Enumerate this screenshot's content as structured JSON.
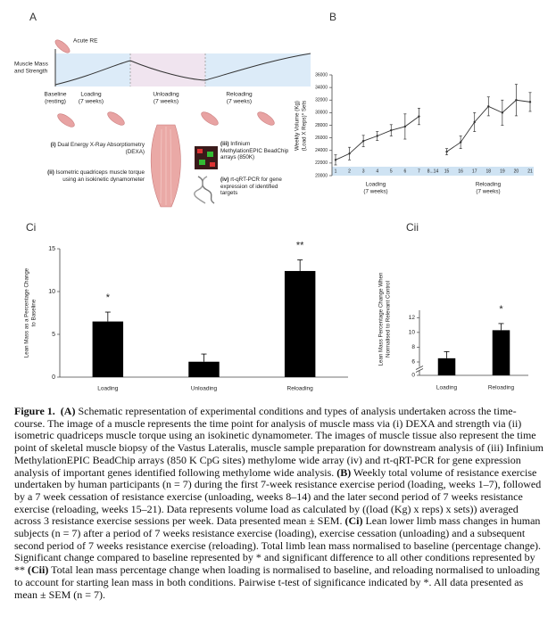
{
  "panel_a": {
    "label": "A",
    "acute": "Acute RE",
    "ylabel": [
      "Muscle Mass",
      "and Strength"
    ],
    "phases": [
      {
        "name": "Baseline",
        "sub": "(resting)"
      },
      {
        "name": "Loading",
        "sub": "(7 weeks)"
      },
      {
        "name": "Unloading",
        "sub": "(7 weeks)"
      },
      {
        "name": "Reloading",
        "sub": "(7 weeks)"
      }
    ],
    "analyses": [
      {
        "marker": "(i)",
        "text": "Dual Energy X-Ray Absorptiometry (DEXA)"
      },
      {
        "marker": "(ii)",
        "text": "Isometric quadriceps muscle torque using an isokinetic dynamometer"
      },
      {
        "marker": "(iii)",
        "text": "Infinium MethylationEPIC BeadChip arrays (850K)"
      },
      {
        "marker": "(iv)",
        "text": "rt-qRT-PCR for gene expression of identified targets"
      }
    ]
  },
  "chart_data": [
    {
      "type": "line",
      "panel": "B",
      "ylabel": [
        "Weekly Volume (Kg)",
        "(Load X Reps)* Sets"
      ],
      "categories": [
        "1",
        "2",
        "3",
        "4",
        "5",
        "6",
        "7",
        "8...14",
        "15",
        "16",
        "17",
        "18",
        "19",
        "20",
        "21"
      ],
      "series": [
        {
          "color": "#333333",
          "values": [
            22500,
            23500,
            25500,
            26300,
            27200,
            27800,
            29400,
            null,
            23800,
            25300,
            28500,
            31000,
            30000,
            32000,
            31700
          ],
          "errors": [
            800,
            1000,
            900,
            700,
            900,
            2000,
            1300,
            null,
            500,
            1000,
            1500,
            1500,
            2000,
            2500,
            1500
          ]
        }
      ],
      "group_labels": [
        [
          "Loading",
          "(7 weeks)"
        ],
        [
          "Reloading",
          "(7 weeks)"
        ]
      ],
      "ylim": [
        20000,
        36000
      ],
      "yticks": [
        20000,
        22000,
        24000,
        26000,
        28000,
        30000,
        32000,
        34000,
        36000
      ]
    },
    {
      "type": "bar",
      "panel": "Ci",
      "ylabel": [
        "Lean Mass as a Percentage Change",
        "to Baseline"
      ],
      "categories": [
        "Loading",
        "Unloading",
        "Reloading"
      ],
      "values": [
        6.5,
        1.8,
        12.4
      ],
      "errors": [
        1.1,
        0.9,
        1.3
      ],
      "annotations": [
        "*",
        null,
        "**"
      ],
      "color": "#000000",
      "ylim": [
        0,
        15
      ],
      "yticks": [
        0,
        5,
        10,
        15
      ]
    },
    {
      "type": "bar",
      "panel": "Cii",
      "ylabel": [
        "Lean Mass Percentage Change When",
        "Normalised to Relevant Control"
      ],
      "categories": [
        "Loading",
        "Reloading"
      ],
      "values": [
        6.5,
        10.3
      ],
      "errors": [
        0.9,
        0.9
      ],
      "annotations": [
        null,
        "*"
      ],
      "color": "#000000",
      "ylim": [
        0,
        13
      ],
      "yticks": [
        0,
        6,
        8,
        10,
        12
      ],
      "axis_break": true
    }
  ],
  "caption": {
    "runs": [
      {
        "text": "Figure 1.",
        "bold": true
      },
      {
        "text": "  ",
        "bold": false
      },
      {
        "text": "(A)",
        "bold": true
      },
      {
        "text": " Schematic representation of experimental conditions and types of analysis undertaken across the time-course. The image of a muscle represents the time point for analysis of muscle mass via (i) DEXA and strength via (ii) isometric quadriceps muscle torque using an isokinetic dynamometer. The images of muscle tissue also represent the time point of skeletal muscle biopsy of the Vastus Lateralis, muscle sample preparation for downstream analysis of (iii) Infinium MethylationEPIC BeadChip arrays (850 K CpG sites) methylome wide array (iv) and rt-qRT-PCR for gene expression analysis of important genes identified following methylome wide analysis. ",
        "bold": false
      },
      {
        "text": "(B)",
        "bold": true
      },
      {
        "text": " Weekly total volume of resistance exercise undertaken by human participants (n = 7) during the first 7-week resistance exercise period (loading, weeks 1–7), followed by a 7 week cessation of resistance exercise (unloading, weeks 8–14) and the later second period of 7 weeks resistance exercise (reloading, weeks 15–21). Data represents volume load as calculated by ((load (Kg) x reps) x sets)) averaged across 3 resistance exercise sessions per week. Data presented mean ± SEM. ",
        "bold": false
      },
      {
        "text": "(Ci)",
        "bold": true
      },
      {
        "text": " Lean lower limb mass changes in human subjects (n = 7) after a period of 7 weeks resistance exercise (loading), exercise cessation (unloading) and a subsequent second period of 7 weeks resistance exercise (reloading). Total limb lean mass normalised to baseline (percentage change). Significant change compared to baseline represented by * and significant difference to all other conditions represented by ** ",
        "bold": false
      },
      {
        "text": "(Cii)",
        "bold": true
      },
      {
        "text": " Total lean mass percentage change when loading is normalised to baseline, and reloading normalised to unloading to account for starting lean mass in both conditions. Pairwise t-test of significance indicated by *. All data presented as mean ± SEM (n = 7).",
        "bold": false
      }
    ]
  }
}
